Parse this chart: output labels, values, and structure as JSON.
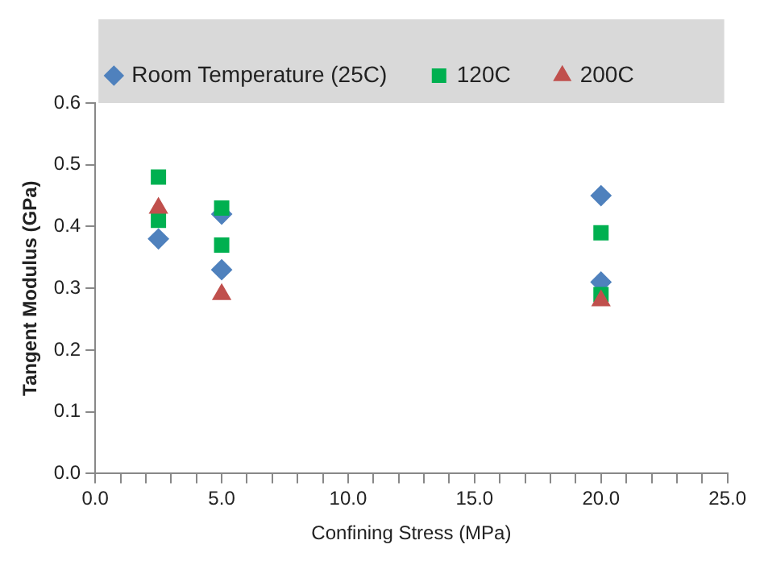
{
  "chart_data": {
    "type": "scatter",
    "xlabel": "Confining Stress (MPa)",
    "ylabel": "Tangent Modulus (GPa)",
    "series": [
      {
        "name": "Room Temperature (25C)",
        "color": "#4f81bd",
        "marker": "diamond",
        "x": [
          2.5,
          5,
          5,
          20,
          20
        ],
        "values": [
          0.38,
          0.42,
          0.33,
          0.45,
          0.31
        ]
      },
      {
        "name": "120C",
        "color": "#00b050",
        "marker": "square",
        "x": [
          2.5,
          2.5,
          5,
          5,
          20,
          20
        ],
        "values": [
          0.48,
          0.41,
          0.43,
          0.37,
          0.39,
          0.29
        ]
      },
      {
        "name": "200C",
        "color": "#c0504d",
        "marker": "triangle",
        "x": [
          2.5,
          5,
          20
        ],
        "values": [
          0.43,
          0.29,
          0.28
        ]
      }
    ],
    "xlim": [
      0,
      25
    ],
    "xticks": [
      {
        "value": 0,
        "label": "0.0"
      },
      {
        "value": 1,
        "label": null
      },
      {
        "value": 2,
        "label": null
      },
      {
        "value": 3,
        "label": null
      },
      {
        "value": 4,
        "label": null
      },
      {
        "value": 5,
        "label": "5.0"
      },
      {
        "value": 6,
        "label": null
      },
      {
        "value": 7,
        "label": null
      },
      {
        "value": 8,
        "label": null
      },
      {
        "value": 9,
        "label": null
      },
      {
        "value": 10,
        "label": "10.0"
      },
      {
        "value": 11,
        "label": null
      },
      {
        "value": 12,
        "label": null
      },
      {
        "value": 13,
        "label": null
      },
      {
        "value": 14,
        "label": null
      },
      {
        "value": 15,
        "label": "15.0"
      },
      {
        "value": 16,
        "label": null
      },
      {
        "value": 17,
        "label": null
      },
      {
        "value": 18,
        "label": null
      },
      {
        "value": 19,
        "label": null
      },
      {
        "value": 20,
        "label": "20.0"
      },
      {
        "value": 21,
        "label": null
      },
      {
        "value": 22,
        "label": null
      },
      {
        "value": 23,
        "label": null
      },
      {
        "value": 24,
        "label": null
      },
      {
        "value": 25,
        "label": "25.0"
      }
    ],
    "ylim": [
      0,
      0.6
    ],
    "yticks": [
      {
        "value": 0,
        "label": "0.0"
      },
      {
        "value": 0.1,
        "label": "0.1"
      },
      {
        "value": 0.2,
        "label": "0.2"
      },
      {
        "value": 0.3,
        "label": "0.3"
      },
      {
        "value": 0.4,
        "label": "0.4"
      },
      {
        "value": 0.5,
        "label": "0.5"
      },
      {
        "value": 0.6,
        "label": "0.6"
      }
    ],
    "grid": false,
    "legend": "top"
  }
}
